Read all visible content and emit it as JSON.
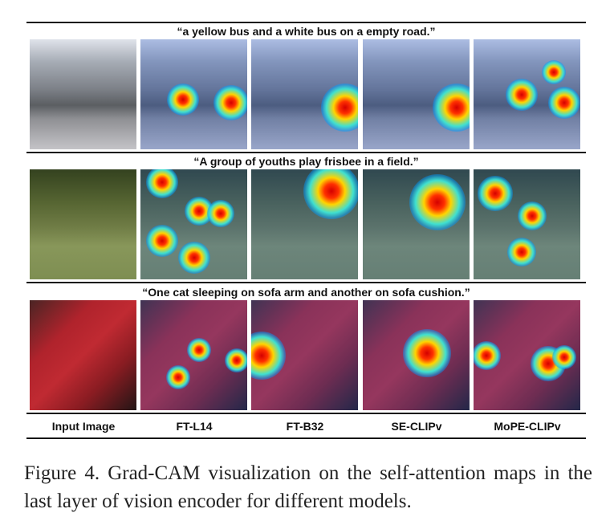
{
  "figure": {
    "rows": [
      {
        "prompt": "“a yellow bus and a white bus on a empty road.”"
      },
      {
        "prompt": "“A group of youths play frisbee in a field.”"
      },
      {
        "prompt": "“One cat sleeping on sofa arm and another on sofa cushion.”"
      }
    ],
    "columns": [
      "Input Image",
      "FT-L14",
      "FT-B32",
      "SE-CLIPv",
      "MoPE-CLIPv"
    ],
    "caption": "Figure 4.  Grad-CAM visualization on the self-attention maps in the last layer of vision encoder for different models."
  }
}
